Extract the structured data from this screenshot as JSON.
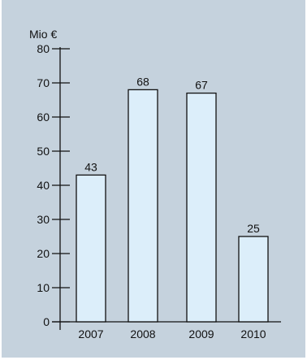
{
  "chart_data": {
    "type": "bar",
    "unit_label": "Mio €",
    "categories": [
      "2007",
      "2008",
      "2009",
      "2010"
    ],
    "values": [
      43,
      68,
      67,
      25
    ],
    "y_ticks": [
      "0",
      "10",
      "20",
      "30",
      "40",
      "50",
      "60",
      "70",
      "80"
    ],
    "ylim": [
      0,
      80
    ],
    "grid": false,
    "colors": {
      "background": "#c5d2dd",
      "bar_fill": "#dceefa",
      "bar_stroke": "#111111",
      "axis": "#111111"
    }
  }
}
